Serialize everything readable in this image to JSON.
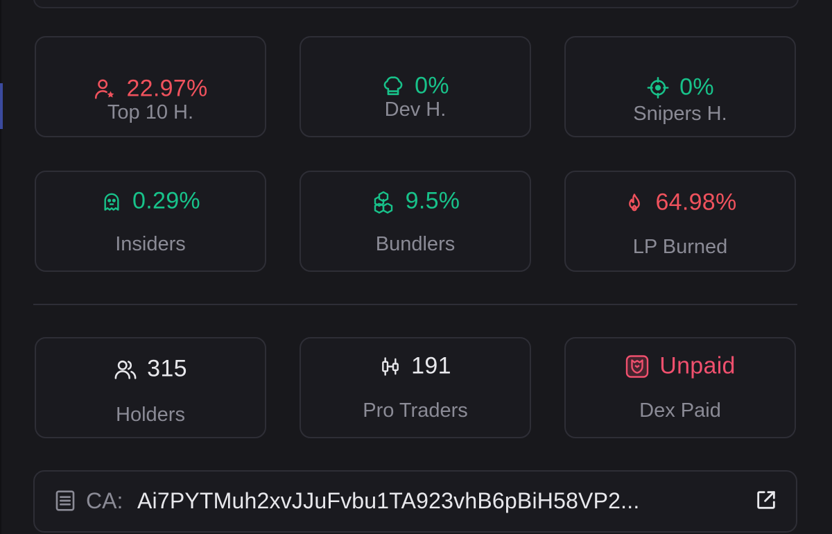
{
  "stats": {
    "top10": {
      "value": "22.97%",
      "label": "Top 10 H.",
      "icon": "user-star-icon",
      "color": "#f0525d"
    },
    "dev": {
      "value": "0%",
      "label": "Dev H.",
      "icon": "chef-hat-icon",
      "color": "#18c28a"
    },
    "snipers": {
      "value": "0%",
      "label": "Snipers H.",
      "icon": "crosshair-icon",
      "color": "#18c28a"
    },
    "insiders": {
      "value": "0.29%",
      "label": "Insiders",
      "icon": "ghost-icon",
      "color": "#18c28a"
    },
    "bundlers": {
      "value": "9.5%",
      "label": "Bundlers",
      "icon": "boxes-icon",
      "color": "#18c28a"
    },
    "lp_burned": {
      "value": "64.98%",
      "label": "LP Burned",
      "icon": "flame-icon",
      "color": "#f0525d"
    }
  },
  "metrics": {
    "holders": {
      "value": "315",
      "label": "Holders",
      "icon": "users-icon"
    },
    "pro_traders": {
      "value": "191",
      "label": "Pro Traders",
      "icon": "candlestick-icon"
    },
    "dex_paid": {
      "value": "Unpaid",
      "label": "Dex Paid",
      "icon": "dexscreener-icon",
      "color": "#f0506e"
    }
  },
  "contract": {
    "label": "CA:",
    "address": "Ai7PYTMuh2xvJJuFvbu1TA923vhB6pBiH58VP2..."
  },
  "colors": {
    "background": "#18181c",
    "card_border": "#2e2e36",
    "red": "#f0525d",
    "green": "#18c28a",
    "muted": "#8b8b96"
  }
}
